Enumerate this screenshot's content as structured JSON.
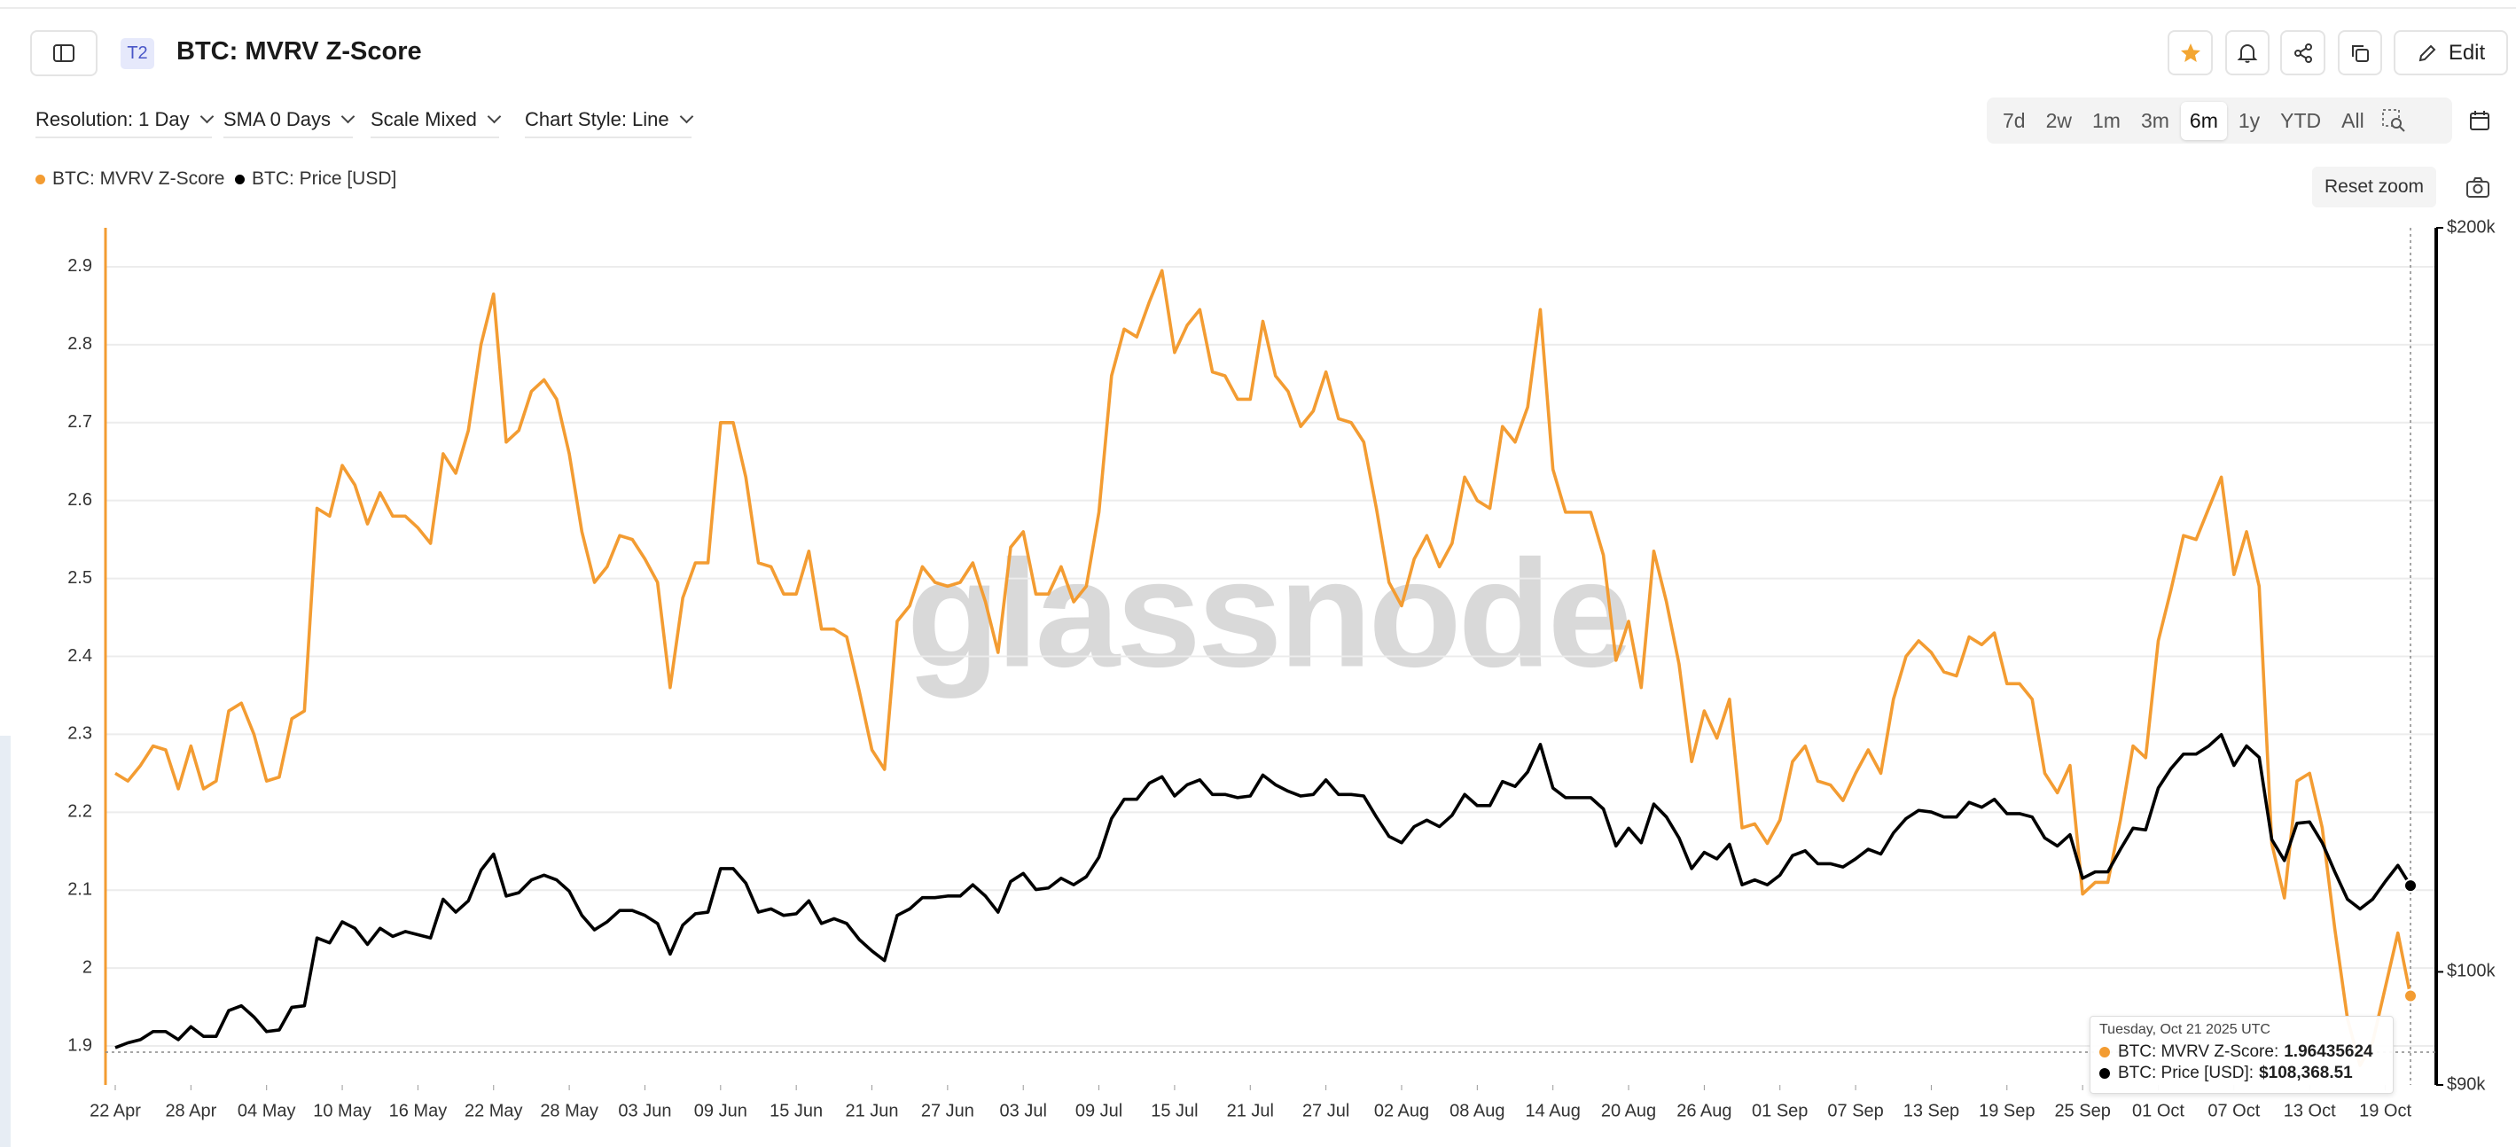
{
  "header": {
    "badge": "T2",
    "title": "BTC: MVRV Z-Score",
    "edit": "Edit"
  },
  "toolbar": {
    "dropdowns": [
      "Resolution: 1 Day",
      "SMA 0 Days",
      "Scale Mixed",
      "Chart Style: Line"
    ],
    "ranges": [
      "7d",
      "2w",
      "1m",
      "3m",
      "6m",
      "1y",
      "YTD",
      "All"
    ],
    "selected_range": "6m"
  },
  "reset_zoom": "Reset zoom",
  "watermark": "glassnode",
  "tooltip": {
    "title": "Tuesday, Oct 21 2025 UTC",
    "rows": [
      {
        "label": "BTC: MVRV Z-Score:",
        "value_label": "1.96435624"
      },
      {
        "label": "BTC: Price [USD]:",
        "value_label": "$108,368.51"
      }
    ]
  },
  "chart_data": {
    "type": "line",
    "categories": [
      "22 Apr",
      "23 Apr",
      "24 Apr",
      "25 Apr",
      "26 Apr",
      "27 Apr",
      "28 Apr",
      "29 Apr",
      "30 Apr",
      "01 May",
      "02 May",
      "03 May",
      "04 May",
      "05 May",
      "06 May",
      "07 May",
      "08 May",
      "09 May",
      "10 May",
      "11 May",
      "12 May",
      "13 May",
      "14 May",
      "15 May",
      "16 May",
      "17 May",
      "18 May",
      "19 May",
      "20 May",
      "21 May",
      "22 May",
      "23 May",
      "24 May",
      "25 May",
      "26 May",
      "27 May",
      "28 May",
      "29 May",
      "30 May",
      "31 May",
      "01 Jun",
      "02 Jun",
      "03 Jun",
      "04 Jun",
      "05 Jun",
      "06 Jun",
      "07 Jun",
      "08 Jun",
      "09 Jun",
      "10 Jun",
      "11 Jun",
      "12 Jun",
      "13 Jun",
      "14 Jun",
      "15 Jun",
      "16 Jun",
      "17 Jun",
      "18 Jun",
      "19 Jun",
      "20 Jun",
      "21 Jun",
      "22 Jun",
      "23 Jun",
      "24 Jun",
      "25 Jun",
      "26 Jun",
      "27 Jun",
      "28 Jun",
      "29 Jun",
      "30 Jun",
      "01 Jul",
      "02 Jul",
      "03 Jul",
      "04 Jul",
      "05 Jul",
      "06 Jul",
      "07 Jul",
      "08 Jul",
      "09 Jul",
      "10 Jul",
      "11 Jul",
      "12 Jul",
      "13 Jul",
      "14 Jul",
      "15 Jul",
      "16 Jul",
      "17 Jul",
      "18 Jul",
      "19 Jul",
      "20 Jul",
      "21 Jul",
      "22 Jul",
      "23 Jul",
      "24 Jul",
      "25 Jul",
      "26 Jul",
      "27 Jul",
      "28 Jul",
      "29 Jul",
      "30 Jul",
      "31 Jul",
      "01 Aug",
      "02 Aug",
      "03 Aug",
      "04 Aug",
      "05 Aug",
      "06 Aug",
      "07 Aug",
      "08 Aug",
      "09 Aug",
      "10 Aug",
      "11 Aug",
      "12 Aug",
      "13 Aug",
      "14 Aug",
      "15 Aug",
      "16 Aug",
      "17 Aug",
      "18 Aug",
      "19 Aug",
      "20 Aug",
      "21 Aug",
      "22 Aug",
      "23 Aug",
      "24 Aug",
      "25 Aug",
      "26 Aug",
      "27 Aug",
      "28 Aug",
      "29 Aug",
      "30 Aug",
      "31 Aug",
      "01 Sep",
      "02 Sep",
      "03 Sep",
      "04 Sep",
      "05 Sep",
      "06 Sep",
      "07 Sep",
      "08 Sep",
      "09 Sep",
      "10 Sep",
      "11 Sep",
      "12 Sep",
      "13 Sep",
      "14 Sep",
      "15 Sep",
      "16 Sep",
      "17 Sep",
      "18 Sep",
      "19 Sep",
      "20 Sep",
      "21 Sep",
      "22 Sep",
      "23 Sep",
      "24 Sep",
      "25 Sep",
      "26 Sep",
      "27 Sep",
      "28 Sep",
      "29 Sep",
      "30 Sep",
      "01 Oct",
      "02 Oct",
      "03 Oct",
      "04 Oct",
      "05 Oct",
      "06 Oct",
      "07 Oct",
      "08 Oct",
      "09 Oct",
      "10 Oct",
      "11 Oct",
      "12 Oct",
      "13 Oct",
      "14 Oct",
      "15 Oct",
      "16 Oct",
      "17 Oct",
      "18 Oct",
      "19 Oct",
      "20 Oct",
      "21 Oct"
    ],
    "series": [
      {
        "name": "BTC: MVRV Z-Score",
        "color": "#f39c32",
        "axis": "y",
        "values": [
          2.25,
          2.24,
          2.26,
          2.285,
          2.28,
          2.23,
          2.285,
          2.23,
          2.24,
          2.33,
          2.34,
          2.3,
          2.24,
          2.245,
          2.32,
          2.33,
          2.59,
          2.58,
          2.645,
          2.62,
          2.57,
          2.61,
          2.58,
          2.58,
          2.565,
          2.545,
          2.66,
          2.635,
          2.69,
          2.8,
          2.865,
          2.675,
          2.69,
          2.74,
          2.755,
          2.73,
          2.66,
          2.56,
          2.495,
          2.515,
          2.555,
          2.55,
          2.525,
          2.495,
          2.36,
          2.475,
          2.52,
          2.52,
          2.7,
          2.7,
          2.63,
          2.52,
          2.515,
          2.48,
          2.48,
          2.535,
          2.435,
          2.435,
          2.425,
          2.355,
          2.28,
          2.255,
          2.445,
          2.465,
          2.515,
          2.495,
          2.49,
          2.495,
          2.52,
          2.47,
          2.405,
          2.54,
          2.56,
          2.48,
          2.48,
          2.515,
          2.47,
          2.49,
          2.585,
          2.76,
          2.82,
          2.81,
          2.855,
          2.895,
          2.79,
          2.825,
          2.845,
          2.765,
          2.76,
          2.73,
          2.73,
          2.83,
          2.76,
          2.74,
          2.695,
          2.715,
          2.765,
          2.705,
          2.7,
          2.675,
          2.59,
          2.495,
          2.465,
          2.525,
          2.555,
          2.515,
          2.545,
          2.63,
          2.6,
          2.59,
          2.695,
          2.675,
          2.72,
          2.845,
          2.64,
          2.585,
          2.585,
          2.585,
          2.53,
          2.395,
          2.445,
          2.36,
          2.535,
          2.47,
          2.39,
          2.265,
          2.33,
          2.295,
          2.345,
          2.18,
          2.185,
          2.16,
          2.19,
          2.265,
          2.285,
          2.24,
          2.235,
          2.215,
          2.25,
          2.28,
          2.25,
          2.345,
          2.4,
          2.42,
          2.405,
          2.38,
          2.375,
          2.425,
          2.415,
          2.43,
          2.365,
          2.365,
          2.345,
          2.25,
          2.225,
          2.26,
          2.095,
          2.11,
          2.11,
          2.19,
          2.285,
          2.27,
          2.42,
          2.485,
          2.555,
          2.55,
          2.59,
          2.63,
          2.505,
          2.56,
          2.49,
          2.16,
          2.09,
          2.24,
          2.25,
          2.18,
          2.05,
          1.935,
          1.875,
          1.905,
          1.975,
          2.045,
          1.96435624
        ]
      },
      {
        "name": "BTC: Price [USD]",
        "color": "#000000",
        "axis": "y2",
        "values": [
          93180,
          93600,
          93880,
          94590,
          94590,
          93880,
          95020,
          94170,
          94170,
          96460,
          96890,
          95880,
          94590,
          94730,
          96750,
          96890,
          103210,
          102740,
          104770,
          104140,
          102590,
          104140,
          103360,
          103830,
          103520,
          103210,
          107000,
          105720,
          106840,
          109930,
          111600,
          107320,
          107650,
          108940,
          109430,
          108940,
          107800,
          105400,
          103990,
          104770,
          105880,
          105880,
          105400,
          104610,
          101670,
          104450,
          105560,
          105720,
          110100,
          110100,
          108620,
          105720,
          106040,
          105400,
          105560,
          106840,
          104610,
          105080,
          104610,
          103050,
          101970,
          101060,
          105400,
          106040,
          107160,
          107160,
          107320,
          107320,
          108450,
          107320,
          105720,
          108780,
          109600,
          107970,
          108130,
          109110,
          108450,
          109270,
          111270,
          115350,
          117440,
          117440,
          119220,
          119940,
          117800,
          119040,
          119580,
          117970,
          117970,
          117620,
          117800,
          120120,
          119040,
          118330,
          117800,
          117970,
          119580,
          117970,
          117970,
          117800,
          115520,
          113460,
          112780,
          114490,
          115180,
          114490,
          115700,
          117970,
          116750,
          116750,
          119400,
          118860,
          120480,
          123600,
          118680,
          117620,
          117620,
          117620,
          116390,
          112440,
          114320,
          112780,
          116920,
          115520,
          113280,
          110100,
          111770,
          111100,
          112610,
          108450,
          108940,
          108450,
          109430,
          111440,
          111940,
          110600,
          110600,
          110260,
          111100,
          112100,
          111600,
          113810,
          115350,
          116230,
          116060,
          115520,
          115520,
          117100,
          116570,
          117440,
          115880,
          115880,
          115520,
          113280,
          112440,
          113630,
          109110,
          109760,
          109760,
          112100,
          114320,
          114140,
          118680,
          120840,
          122490,
          122490,
          123420,
          124730,
          121200,
          123420,
          122120,
          113120,
          110930,
          114840,
          114990,
          112780,
          109760,
          107000,
          106040,
          107000,
          108780,
          110430,
          108368.51
        ]
      }
    ],
    "ylim": [
      1.85,
      2.95
    ],
    "yticks": [
      1.9,
      2,
      2.1,
      2.2,
      2.3,
      2.4,
      2.5,
      2.6,
      2.7,
      2.8,
      2.9
    ],
    "y2lim": [
      90000,
      200000
    ],
    "y2ticks": [
      {
        "value": 90000,
        "label": "$90k"
      },
      {
        "value": 100000,
        "label": "$100k"
      },
      {
        "value": 200000,
        "label": "$200k"
      }
    ],
    "y2_log": true,
    "grid": true
  }
}
